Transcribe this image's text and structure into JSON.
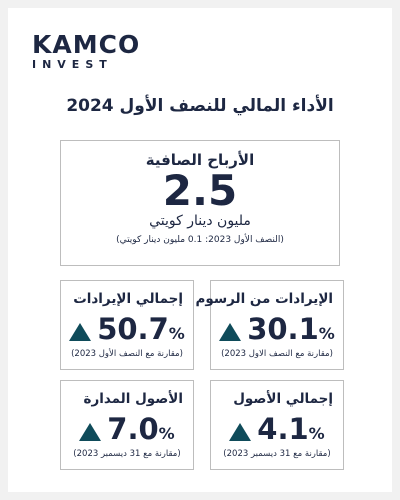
{
  "logo": {
    "name": "KAMCO",
    "sub": "INVEST"
  },
  "title": "الأداء المالي للنصف الأول 2024",
  "net_profit": {
    "label": "الأرباح الصافية",
    "value": "2.5",
    "unit": "مليون دينار كويتي",
    "note": "(النصف الأول 2023: 0.1 مليون دينار كويتي)"
  },
  "cards": [
    {
      "label": "الإيرادات من الرسوم",
      "value": "30.1",
      "unit": "%",
      "note": "(مقارنة مع النصف الاول 2023)"
    },
    {
      "label": "إجمالي الإيرادات",
      "value": "50.7",
      "unit": "%",
      "note": "(مقارنة مع النصف الأول 2023)"
    },
    {
      "label": "إجمالي الأصول",
      "value": "4.1",
      "unit": "%",
      "note": "(مقارنة مع 31 ديسمبر 2023)"
    },
    {
      "label": "الأصول المدارة",
      "value": "7.0",
      "unit": "%",
      "note": "(مقارنة مع 31 ديسمبر 2023)"
    }
  ]
}
